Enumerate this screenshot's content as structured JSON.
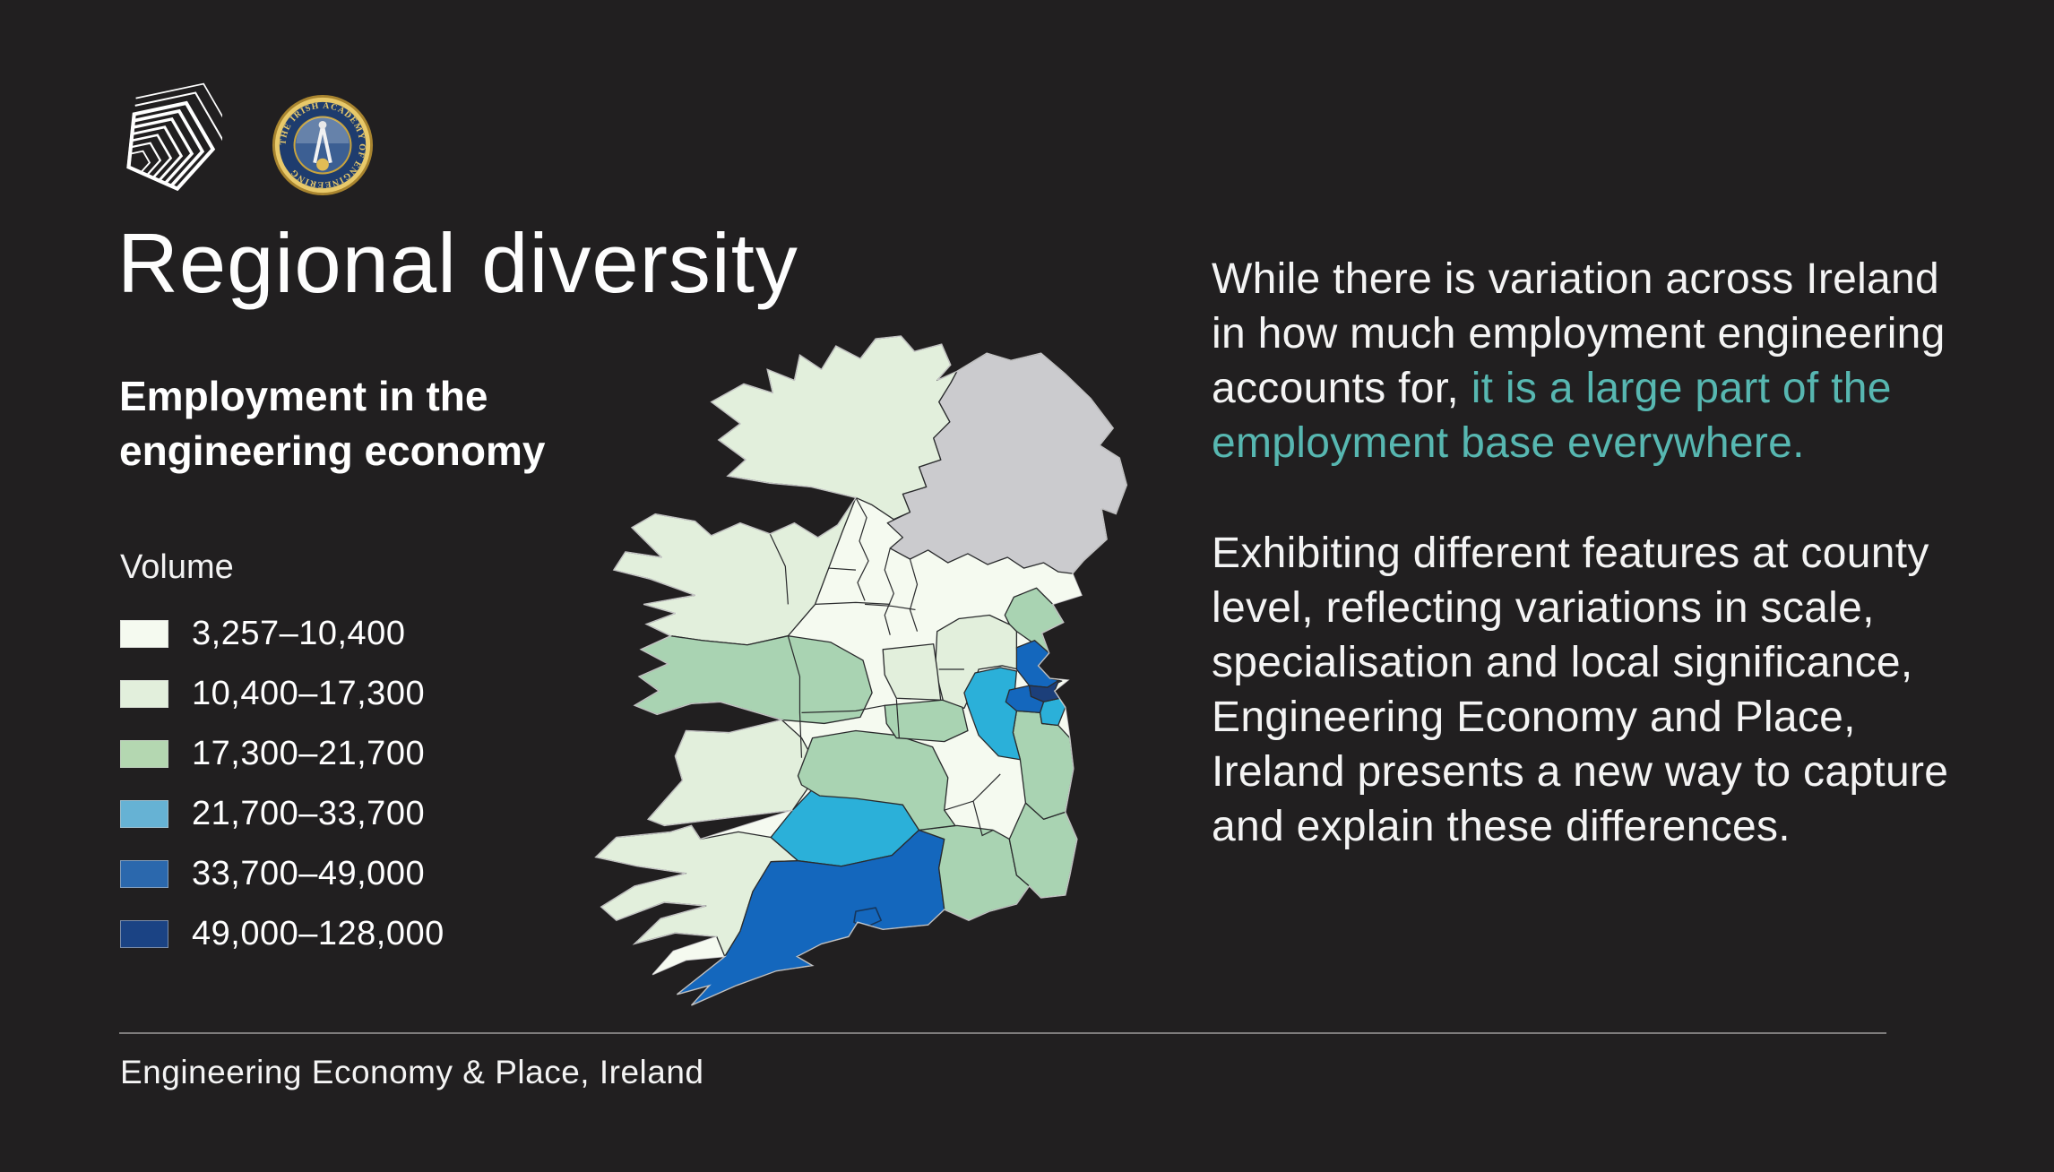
{
  "page": {
    "background": "#211f20"
  },
  "logos": {
    "pentagon": "pentagon-spiral-logo",
    "academy_badge_text": "THE IRISH ACADEMY OF ENGINEERING"
  },
  "title": "Regional diversity",
  "subtitle": "Employment in the engineering economy",
  "legend": {
    "label": "Volume",
    "items": [
      {
        "range": "3,257–10,400",
        "color": "#f5faf0"
      },
      {
        "range": "10,400–17,300",
        "color": "#e2efdc"
      },
      {
        "range": "17,300–21,700",
        "color": "#b4d7b1"
      },
      {
        "range": "21,700–33,700",
        "color": "#66b2d4"
      },
      {
        "range": "33,700–49,000",
        "color": "#2b68ad"
      },
      {
        "range": "49,000–128,000",
        "color": "#1b4384"
      }
    ]
  },
  "map": {
    "subject": "Island of Ireland choropleth",
    "no_data_color": "#cbcbce",
    "land_base_color": "#f5faf0",
    "boundary_color": "#2a2b2d",
    "map_palette": [
      "#f5faf0",
      "#e2efdc",
      "#a9d3b2",
      "#2bb0d9",
      "#1467bd",
      "#1c3f7a"
    ],
    "regions": [
      {
        "name": "northern-ireland",
        "volume_class": 0
      },
      {
        "name": "donegal",
        "volume_class": 2
      },
      {
        "name": "mayo-sligo",
        "volume_class": 2
      },
      {
        "name": "galway",
        "volume_class": 3
      },
      {
        "name": "clare",
        "volume_class": 2
      },
      {
        "name": "kerry",
        "volume_class": 2
      },
      {
        "name": "limerick",
        "volume_class": 4
      },
      {
        "name": "cork",
        "volume_class": 5
      },
      {
        "name": "cork-city",
        "volume_class": 5
      },
      {
        "name": "waterford",
        "volume_class": 3
      },
      {
        "name": "tipperary",
        "volume_class": 3
      },
      {
        "name": "wexford",
        "volume_class": 3
      },
      {
        "name": "wicklow",
        "volume_class": 3
      },
      {
        "name": "meath",
        "volume_class": 2
      },
      {
        "name": "kildare",
        "volume_class": 4
      },
      {
        "name": "westmeath",
        "volume_class": 2
      },
      {
        "name": "offaly",
        "volume_class": 3
      },
      {
        "name": "louth",
        "volume_class": 3
      },
      {
        "name": "fingal",
        "volume_class": 5
      },
      {
        "name": "south-dublin",
        "volume_class": 5
      },
      {
        "name": "dun-laoghaire",
        "volume_class": 4
      },
      {
        "name": "dublin-city",
        "volume_class": 6
      }
    ]
  },
  "body": {
    "p1_white": "While there is variation across Ireland in how much employment engineering accounts for,",
    "p1_teal": " it is a large part of the employment base everywhere.",
    "teal_color": "#57b7b1",
    "p2": "Exhibiting different features at county level, reflecting variations in scale, specialisation and local significance, Engineering Economy and Place, Ireland presents a new way to capture and explain these differences."
  },
  "footer": "Engineering Economy & Place, Ireland",
  "chart_data": {
    "type": "heatmap",
    "subtype": "choropleth-map",
    "title": "Employment in the engineering economy",
    "legend_title": "Volume",
    "legend_position": "left",
    "classes": [
      {
        "label": "3,257–10,400",
        "range": [
          3257,
          10400
        ],
        "color": "#f5faf0"
      },
      {
        "label": "10,400–17,300",
        "range": [
          10400,
          17300
        ],
        "color": "#e2efdc"
      },
      {
        "label": "17,300–21,700",
        "range": [
          17300,
          21700
        ],
        "color": "#b4d7b1"
      },
      {
        "label": "21,700–33,700",
        "range": [
          21700,
          33700
        ],
        "color": "#66b2d4"
      },
      {
        "label": "33,700–49,000",
        "range": [
          33700,
          49000
        ],
        "color": "#2b68ad"
      },
      {
        "label": "49,000–128,000",
        "range": [
          49000,
          128000
        ],
        "color": "#1b4384"
      }
    ],
    "regions": [
      {
        "name": "Northern Ireland",
        "class": null
      },
      {
        "name": "Donegal",
        "class": 2
      },
      {
        "name": "Mayo / Sligo",
        "class": 2
      },
      {
        "name": "Galway",
        "class": 3
      },
      {
        "name": "Clare",
        "class": 2
      },
      {
        "name": "Kerry",
        "class": 2
      },
      {
        "name": "Limerick",
        "class": 4
      },
      {
        "name": "Cork",
        "class": 5
      },
      {
        "name": "Waterford",
        "class": 3
      },
      {
        "name": "Tipperary",
        "class": 3
      },
      {
        "name": "Wexford",
        "class": 3
      },
      {
        "name": "Wicklow",
        "class": 3
      },
      {
        "name": "Meath",
        "class": 2
      },
      {
        "name": "Kildare",
        "class": 4
      },
      {
        "name": "Westmeath",
        "class": 2
      },
      {
        "name": "Offaly",
        "class": 3
      },
      {
        "name": "Louth",
        "class": 3
      },
      {
        "name": "Fingal",
        "class": 5
      },
      {
        "name": "South Dublin",
        "class": 5
      },
      {
        "name": "Dún Laoghaire-Rathdown",
        "class": 4
      },
      {
        "name": "Dublin City",
        "class": 6
      }
    ]
  }
}
